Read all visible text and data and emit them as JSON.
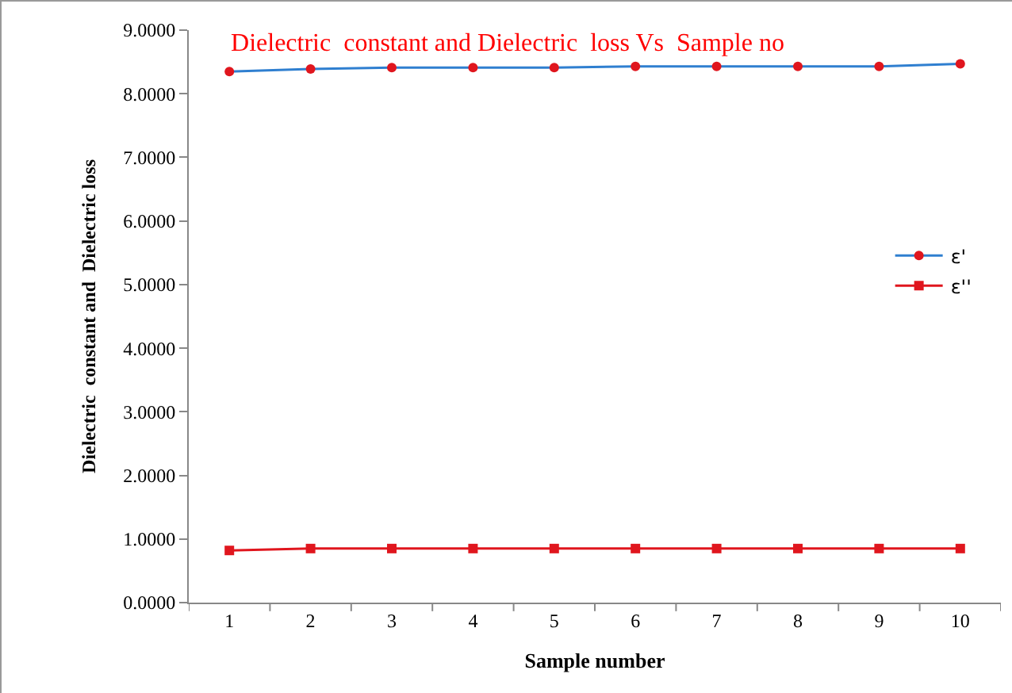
{
  "chart_data": {
    "type": "line",
    "title": "Dielectric  constant and Dielectric  loss Vs  Sample no",
    "xlabel": "Sample number",
    "ylabel": "Dielectric  constant and  Dielectric loss",
    "categories": [
      "1",
      "2",
      "3",
      "4",
      "5",
      "6",
      "7",
      "8",
      "9",
      "10"
    ],
    "series": [
      {
        "name": "ε'",
        "color": "#2f7fd0",
        "marker": "circle",
        "values": [
          8.35,
          8.39,
          8.41,
          8.41,
          8.41,
          8.43,
          8.43,
          8.43,
          8.43,
          8.47
        ]
      },
      {
        "name": "ε''",
        "color": "#e0161e",
        "marker": "square",
        "values": [
          0.82,
          0.85,
          0.85,
          0.85,
          0.85,
          0.85,
          0.85,
          0.85,
          0.85,
          0.85
        ]
      }
    ],
    "ylim": [
      0,
      9
    ],
    "yticks": [
      {
        "value": 0,
        "label": "0.0000"
      },
      {
        "value": 1,
        "label": "1.0000"
      },
      {
        "value": 2,
        "label": "2.0000"
      },
      {
        "value": 3,
        "label": "3.0000"
      },
      {
        "value": 4,
        "label": "4.0000"
      },
      {
        "value": 5,
        "label": "5.0000"
      },
      {
        "value": 6,
        "label": "6.0000"
      },
      {
        "value": 7,
        "label": "7.0000"
      },
      {
        "value": 8,
        "label": "8.0000"
      },
      {
        "value": 9,
        "label": "9.0000"
      }
    ],
    "grid": false,
    "legend": "right",
    "line_style": "solid"
  }
}
